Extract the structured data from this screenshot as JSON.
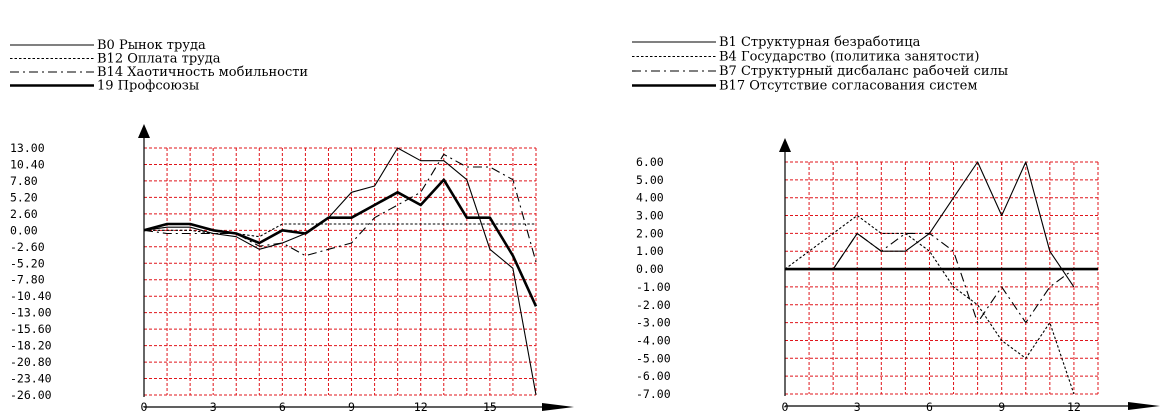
{
  "chart_data": [
    {
      "type": "line",
      "title": "",
      "xlabel": "",
      "ylabel": "",
      "xlim": [
        0,
        17
      ],
      "ylim": [
        -26,
        13
      ],
      "grid": true,
      "legend": "top-left",
      "x_ticks": [
        0,
        3,
        6,
        9,
        12,
        15
      ],
      "y_ticks": [
        "13.00",
        "10.40",
        "7.80",
        "5.20",
        "2.60",
        "0.00",
        "-2.60",
        "-5.20",
        "-7.80",
        "-10.40",
        "-13.00",
        "-15.60",
        "-18.20",
        "-20.80",
        "-23.40",
        "-26.00"
      ],
      "x": [
        0,
        1,
        2,
        3,
        4,
        5,
        6,
        7,
        8,
        9,
        10,
        11,
        12,
        13,
        14,
        15,
        16,
        17
      ],
      "series": [
        {
          "name": "B0 Рынок труда",
          "style": "thin",
          "values": [
            0,
            0.5,
            0.5,
            -0.5,
            -1,
            -3,
            -2,
            -0.5,
            2,
            6,
            7,
            13,
            11,
            11,
            8,
            -3,
            -6,
            -26
          ]
        },
        {
          "name": "B12 Оплата труда",
          "style": "dotted",
          "values": [
            0,
            0,
            0,
            -0.5,
            -0.5,
            -1,
            1,
            1,
            1,
            1,
            1,
            1,
            1,
            1,
            1,
            1,
            1,
            1
          ]
        },
        {
          "name": "B14 Хаотичность мобильности",
          "style": "dashdot",
          "values": [
            0,
            -0.5,
            -0.5,
            -0.5,
            -0.5,
            -2.5,
            -2,
            -4,
            -3,
            -2,
            2,
            4,
            6,
            12,
            10,
            10,
            8,
            -5
          ]
        },
        {
          "name": "19 Профсоюзы",
          "style": "thick",
          "values": [
            0,
            1,
            1,
            0,
            -0.5,
            -2,
            0,
            -0.5,
            2,
            2,
            4,
            6,
            4,
            8,
            2,
            2,
            -4,
            -12
          ]
        }
      ]
    },
    {
      "type": "line",
      "title": "",
      "xlabel": "",
      "ylabel": "",
      "xlim": [
        0,
        13
      ],
      "ylim": [
        -7,
        6
      ],
      "grid": true,
      "legend": "top",
      "x_ticks": [
        0,
        3,
        6,
        9,
        12
      ],
      "y_ticks": [
        "6.00",
        "5.00",
        "4.00",
        "3.00",
        "2.00",
        "1.00",
        "0.00",
        "-1.00",
        "-2.00",
        "-3.00",
        "-4.00",
        "-5.00",
        "-6.00",
        "-7.00"
      ],
      "series": [
        {
          "name": "B1 Структурная безработица",
          "style": "thin",
          "x": [
            0,
            1,
            2,
            3,
            4,
            5,
            6,
            7,
            8,
            9,
            10,
            11,
            12
          ],
          "values": [
            0,
            0,
            0,
            2,
            1,
            1,
            2,
            4,
            6,
            3,
            6,
            1,
            -1
          ]
        },
        {
          "name": "B4 Государство (политика занятости)",
          "style": "dotted",
          "x": [
            0,
            1,
            2,
            3,
            4,
            5,
            6,
            7,
            8,
            9,
            10,
            11,
            12
          ],
          "values": [
            0,
            1,
            2,
            3,
            2,
            2,
            1,
            -1,
            -2,
            -4,
            -5,
            -3,
            -7
          ]
        },
        {
          "name": "B7 Структурный дисбаланс рабочей силы",
          "style": "dashdot",
          "x": [
            0,
            1,
            2,
            3,
            4,
            5,
            6,
            7,
            8,
            9,
            10,
            11,
            12
          ],
          "values": [
            0,
            0,
            0,
            2,
            1,
            2,
            2,
            1,
            -3,
            -1,
            -3,
            -1,
            0
          ]
        },
        {
          "name": "B17 Отсутствие согласования систем",
          "style": "thick",
          "x": [
            0,
            13
          ],
          "values": [
            0,
            0
          ]
        }
      ]
    }
  ]
}
